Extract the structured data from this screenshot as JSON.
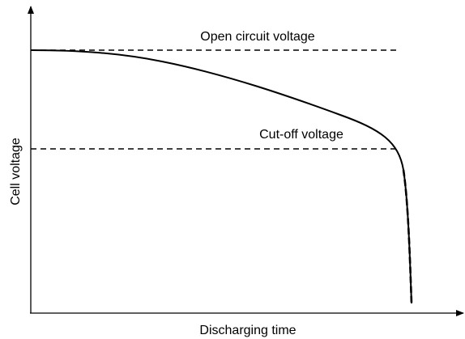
{
  "axes": {
    "x_label": "Discharging time",
    "y_label": "Cell voltage"
  },
  "annotations": {
    "open_circuit": "Open circuit voltage",
    "cut_off": "Cut-off voltage"
  }
}
